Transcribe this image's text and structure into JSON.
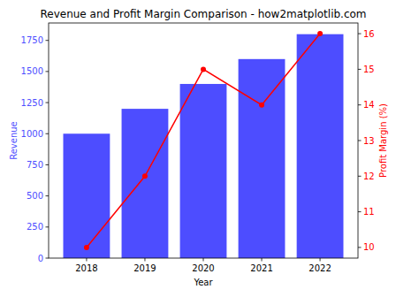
{
  "chart_data": {
    "type": "bar",
    "title": "Revenue and Profit Margin Comparison - how2matplotlib.com",
    "x_label": "Year",
    "categories": [
      "2018",
      "2019",
      "2020",
      "2021",
      "2022"
    ],
    "series": [
      {
        "name": "Revenue",
        "type": "bar",
        "color": "#4d4dff",
        "values": [
          1000,
          1200,
          1400,
          1600,
          1800
        ]
      },
      {
        "name": "Profit Margin (%)",
        "type": "line",
        "axis": "y2",
        "color": "#ff0000",
        "marker": "circle",
        "line_style": "solid",
        "values": [
          10,
          12,
          15,
          14,
          16
        ]
      }
    ],
    "ylim": [
      0,
      1890
    ],
    "yticks": [
      0,
      250,
      500,
      750,
      1000,
      1250,
      1500,
      1750
    ],
    "y2lim": [
      9.7,
      16.3
    ],
    "y2ticks": [
      10,
      11,
      12,
      13,
      14,
      15,
      16
    ],
    "grid": false
  }
}
